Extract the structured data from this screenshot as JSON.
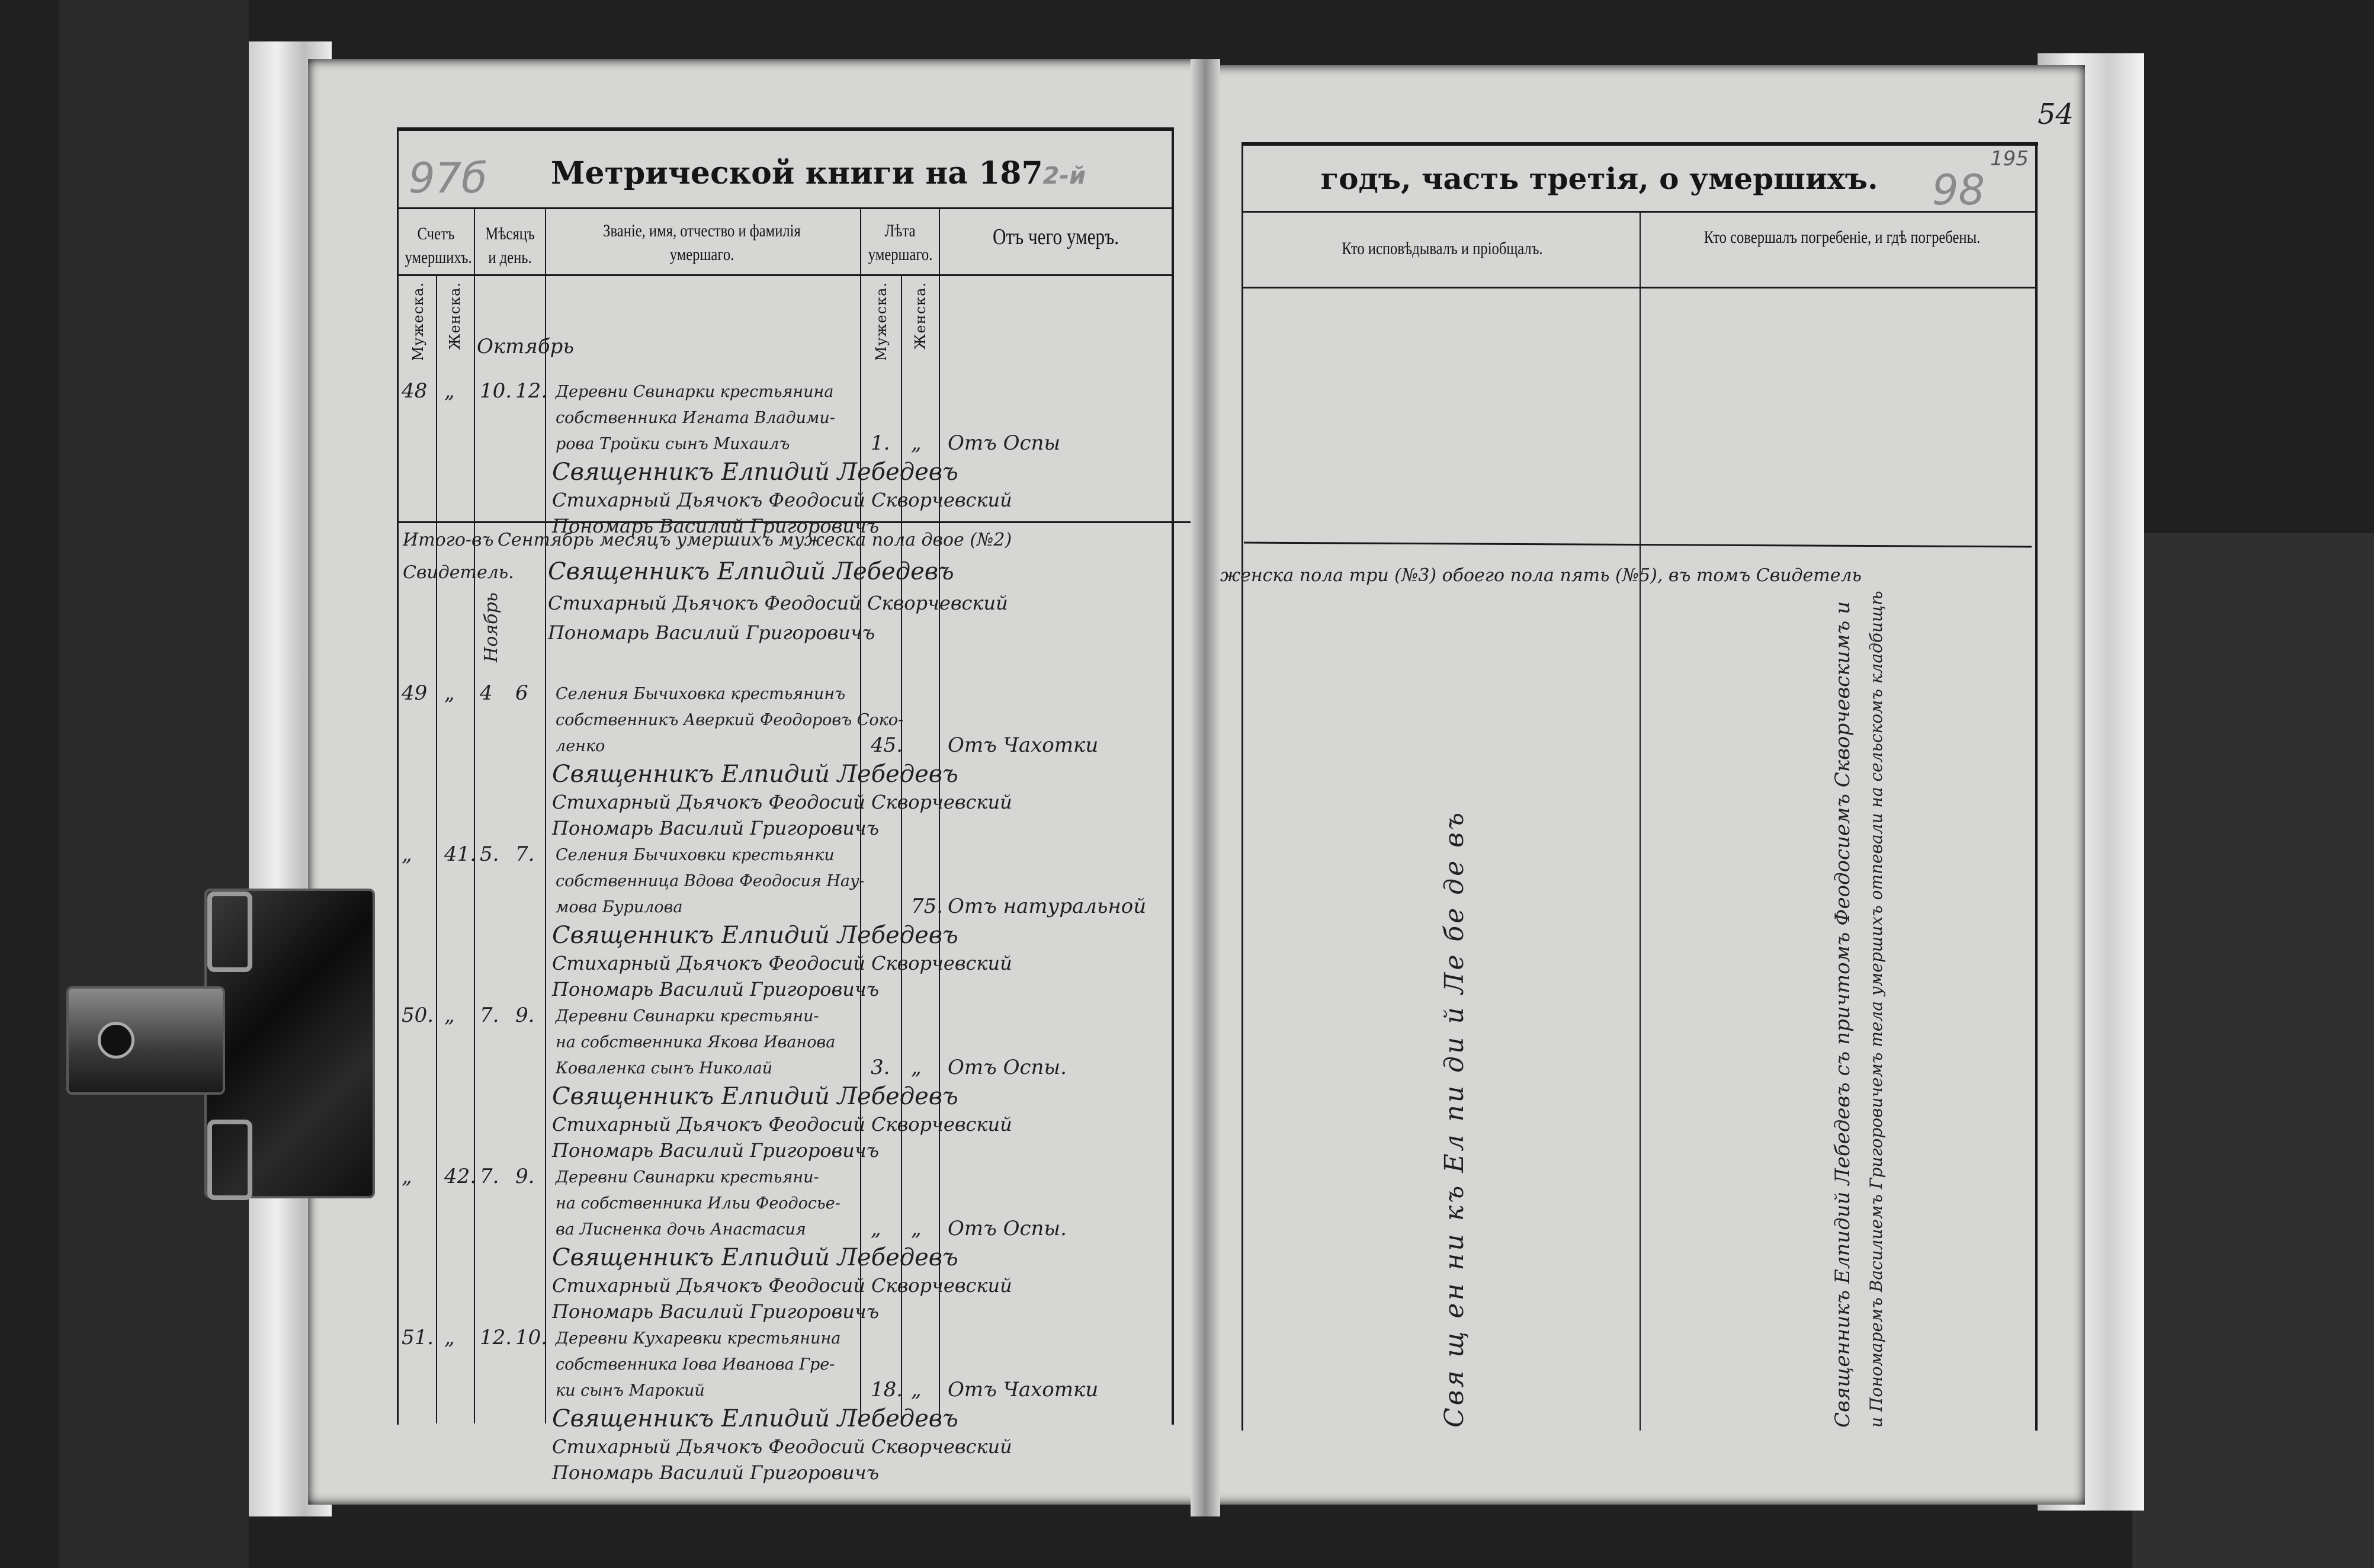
{
  "left_page": {
    "title": "Метрической книги на 187",
    "title_year_handwritten": "2-й",
    "margin_pencil_number": "97б",
    "headers": {
      "count": "Счетъ умершихъ.",
      "male": "Мужеска.",
      "female": "Женска.",
      "month_day": "Мѣсяцъ и день.",
      "name": "Званіе, имя, отчество и фамилія умершаго.",
      "age": "Лѣта умершаго.",
      "age_male": "Мужеска.",
      "age_female": "Женска.",
      "cause": "Отъ чего умеръ."
    },
    "month_october": "Октябрь",
    "month_november": "Ноябрь",
    "entries": [
      {
        "male_no": "48",
        "female_no": "„",
        "month": "10.",
        "day": "12.",
        "name_lines": [
          "Деревни Свинарки крестьянина",
          "собственника Игната Владими-",
          "рова Тройки сынъ Михаилъ"
        ],
        "age_male": "1.",
        "age_female": "„",
        "cause": "Отъ Оспы",
        "signatures": [
          "Священникъ Елпидий Лебедевъ",
          "Стихарный Дьячокъ Феодосий Скворчевский",
          "Пономарь Василий Григоровичъ"
        ]
      },
      {
        "male_no": "49",
        "female_no": "„",
        "month": "4",
        "day": "6",
        "name_lines": [
          "Селения Бычиховка крестьянинъ",
          "собственникъ Аверкий Феодоровъ Соко-",
          "ленко"
        ],
        "age_male": "45.",
        "age_female": "",
        "cause": "Отъ Чахотки",
        "signatures": [
          "Священникъ Елпидий Лебедевъ",
          "Стихарный Дьячокъ Феодосий Скворчевский",
          "Пономарь Василий Григоровичъ"
        ]
      },
      {
        "male_no": "„",
        "female_no": "41.",
        "month": "5.",
        "day": "7.",
        "name_lines": [
          "Селения Бычиховки крестьянки",
          "собственница Вдова Феодосия Наy-",
          "мова Бурилова"
        ],
        "age_male": "",
        "age_female": "75.",
        "cause": "Отъ натуральной",
        "signatures": [
          "Священникъ Елпидий Лебедевъ",
          "Стихарный Дьячокъ Феодосий Скворчевский",
          "Пономарь Василий Григоровичъ"
        ]
      },
      {
        "male_no": "50.",
        "female_no": "„",
        "month": "7.",
        "day": "9.",
        "name_lines": [
          "Деревни Свинарки крестьяни-",
          "на собственника Якова Иванова",
          "Коваленка сынъ Николай"
        ],
        "age_male": "3.",
        "age_female": "„",
        "cause": "Отъ Оспы.",
        "signatures": [
          "Священникъ Елпидий Лебедевъ",
          "Стихарный Дьячокъ Феодосий Скворчевский",
          "Пономарь Василий Григоровичъ"
        ]
      },
      {
        "male_no": "„",
        "female_no": "42.",
        "month": "7.",
        "day": "9.",
        "name_lines": [
          "Деревни Свинарки крестьяни-",
          "на собственника Ильи Феодосье-",
          "ва Лисненка дочь Анастасия"
        ],
        "age_male": "„",
        "age_female": "„",
        "cause": "Отъ Оспы.",
        "signatures": [
          "Священникъ Елпидий Лебедевъ",
          "Стихарный Дьячокъ Феодосий Скворчевский",
          "Пономарь Василий Григоровичъ"
        ]
      },
      {
        "male_no": "51.",
        "female_no": "„",
        "month": "12.",
        "day": "10.",
        "name_lines": [
          "Деревни Кухаревки крестьянина",
          "собственника Іова Иванова Гре-",
          "ки сынъ Марокий"
        ],
        "age_male": "18.",
        "age_female": "„",
        "cause": "Отъ Чахотки",
        "signatures": [
          "Священникъ Елпидий Лебедевъ",
          "Стихарный Дьячокъ Феодосий Скворчевский",
          "Пономарь Василий Григоровичъ"
        ]
      }
    ],
    "summary": {
      "label_1": "Итого-въ",
      "label_2": "Свидетель.",
      "text": "Сентябрь месяцъ умершихъ мужеска пола двое (№2)",
      "signatures": [
        "Священникъ Елпидий Лебедевъ",
        "Стихарный Дьячокъ Феодосий Скворчевский",
        "Пономарь Василий Григоровичъ"
      ]
    }
  },
  "right_page": {
    "title": "годъ, часть третія, о умершихъ.",
    "margin_pencil_number": "98",
    "margin_number_small": "195",
    "folio_number": "54",
    "headers": {
      "confessor": "Кто исповѣдывалъ и пріобщалъ.",
      "burial": "Кто совершалъ погребеніе, и гдѣ погребены."
    },
    "summary_continuation": "женска пола три (№3) обоего пола пять (№5), въ томъ Свидетель",
    "confessor_vertical": "Свя  щ  ен  ни  къ  Ел  пи  ди  й  Ле  бе  де  въ",
    "burial_vertical_1": "Священникъ Елпидий Лебедевъ съ причтомъ Феодосиемъ Скворчевскимъ и",
    "burial_vertical_2": "и Пономаремъ Василиемъ Григоровичемъ тела умершихъ отпевали на сельскомъ кладбищѣ"
  },
  "colors": {
    "paper": "#d6d6d4",
    "ink": "#1a1a1a",
    "background": "#1c1c1c",
    "pencil": "#8a8a8a"
  }
}
